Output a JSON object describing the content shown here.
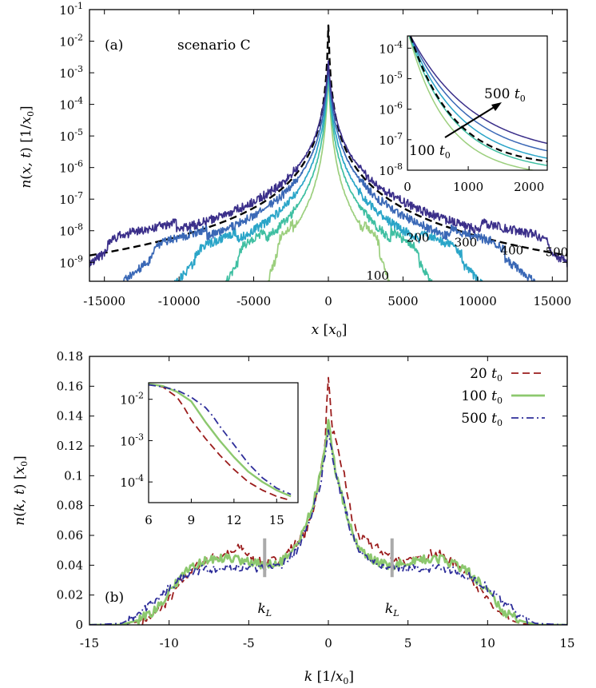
{
  "chart_data": [
    {
      "type": "line",
      "panel_label": "(a)",
      "annotation": "scenario C",
      "xlabel": "x [x0]",
      "ylabel": "n(x,t) [1/x0]",
      "xlim": [
        -16000,
        16000
      ],
      "ylim_log10": [
        -9.6,
        -1
      ],
      "y_scale": "log",
      "x_ticks": [
        -15000,
        -10000,
        -5000,
        0,
        5000,
        10000,
        15000
      ],
      "x_tick_labels": [
        "-15000",
        "-10000",
        "-5000",
        "0",
        "5000",
        "10000",
        "15000"
      ],
      "y_tick_exponents": [
        -9,
        -8,
        -7,
        -6,
        -5,
        -4,
        -3,
        -2,
        -1
      ],
      "curve_labels": [
        {
          "text": "100",
          "x": 3300,
          "log10_y": -9.55
        },
        {
          "text": "200",
          "x": 6000,
          "log10_y": -8.35
        },
        {
          "text": "300",
          "x": 9200,
          "log10_y": -8.5
        },
        {
          "text": "400",
          "x": 12300,
          "log10_y": -8.75
        },
        {
          "text": "500",
          "x": 15300,
          "log10_y": -8.8
        }
      ],
      "series": [
        {
          "time": "100",
          "color": "#9ccf7e",
          "log10_peak": -3.0,
          "core_width": 700,
          "front": 4300
        },
        {
          "time": "200",
          "color": "#3fbfa2",
          "log10_peak": -2.9,
          "core_width": 820,
          "front": 7600
        },
        {
          "time": "300",
          "color": "#2aa5c8",
          "log10_peak": -2.8,
          "core_width": 900,
          "front": 11200
        },
        {
          "time": "400",
          "color": "#3a68b6",
          "log10_peak": -2.7,
          "core_width": 950,
          "front": 14800
        },
        {
          "time": "500",
          "color": "#3b2f8a",
          "log10_peak": -2.6,
          "core_width": 1000,
          "front": 18500
        }
      ],
      "reference_curve": {
        "style": "dashed",
        "color": "#000000",
        "log10_peak": -1.5
      },
      "inset": {
        "xlim": [
          0,
          2300
        ],
        "ylim_log10": [
          -8,
          -3.6
        ],
        "x_ticks": [
          0,
          1000,
          2000
        ],
        "y_tick_exponents": [
          -8,
          -7,
          -6,
          -5,
          -4
        ],
        "arrow_from_label": "100 t0",
        "arrow_to_label": "500 t0"
      }
    },
    {
      "type": "line",
      "panel_label": "(b)",
      "xlabel": "k [1/x0]",
      "ylabel": "n(k,t) [x0]",
      "xlim": [
        -15,
        15
      ],
      "ylim": [
        0,
        0.18
      ],
      "x_ticks": [
        -15,
        -10,
        -5,
        0,
        5,
        10,
        15
      ],
      "x_tick_labels": [
        "-15",
        "-10",
        "-5",
        "0",
        "5",
        "10",
        "15"
      ],
      "y_ticks": [
        0,
        0.02,
        0.04,
        0.06,
        0.08,
        0.1,
        0.12,
        0.14,
        0.16,
        0.18
      ],
      "y_tick_labels": [
        "0",
        "0.02",
        "0.04",
        "0.06",
        "0.08",
        "0.1",
        "0.12",
        "0.14",
        "0.16",
        "0.18"
      ],
      "kL_marker": {
        "label": "kL",
        "positions": [
          -4,
          4
        ]
      },
      "series": [
        {
          "name": "20 t0",
          "style": "dashed",
          "color": "#9b1c1c",
          "x": [
            -15,
            -13,
            -12,
            -11,
            -10,
            -9,
            -8,
            -7,
            -6,
            -5.5,
            -5,
            -4,
            -3,
            -2,
            -1.5,
            -1,
            -0.5,
            -0.2,
            0,
            0.2,
            0.5,
            1,
            1.5,
            2,
            2.5,
            3,
            4,
            5,
            6,
            6.5,
            7,
            8,
            9,
            10,
            11,
            12,
            13,
            15
          ],
          "y": [
            0,
            0,
            0.002,
            0.006,
            0.017,
            0.032,
            0.042,
            0.046,
            0.048,
            0.053,
            0.046,
            0.042,
            0.044,
            0.055,
            0.06,
            0.075,
            0.1,
            0.125,
            0.168,
            0.135,
            0.12,
            0.1,
            0.07,
            0.058,
            0.055,
            0.052,
            0.045,
            0.042,
            0.046,
            0.048,
            0.047,
            0.041,
            0.031,
            0.016,
            0.005,
            0.001,
            0,
            0
          ]
        },
        {
          "name": "100 t0",
          "style": "solid",
          "color": "#8cc86e",
          "x": [
            -15,
            -13,
            -12,
            -11,
            -10,
            -9,
            -8,
            -7,
            -6,
            -5,
            -4,
            -3,
            -2,
            -1.5,
            -1,
            -0.5,
            -0.2,
            0,
            0.2,
            0.5,
            1,
            1.5,
            2,
            3,
            4,
            5,
            6,
            7,
            8,
            9,
            10,
            11,
            12,
            13,
            15
          ],
          "y": [
            0,
            0,
            0.003,
            0.009,
            0.022,
            0.035,
            0.042,
            0.044,
            0.045,
            0.042,
            0.04,
            0.042,
            0.052,
            0.065,
            0.08,
            0.1,
            0.12,
            0.135,
            0.12,
            0.1,
            0.08,
            0.062,
            0.05,
            0.042,
            0.04,
            0.042,
            0.044,
            0.044,
            0.04,
            0.034,
            0.022,
            0.009,
            0.003,
            0,
            0
          ]
        },
        {
          "name": "500 t0",
          "style": "dashdot",
          "color": "#2e2e9a",
          "x": [
            -15,
            -13,
            -12,
            -11,
            -10,
            -9,
            -8,
            -7,
            -6,
            -5,
            -4,
            -3,
            -2,
            -1.5,
            -1,
            -0.5,
            -0.2,
            0,
            0.2,
            0.5,
            1,
            1.5,
            2,
            3,
            4,
            5,
            6,
            7,
            8,
            9,
            10,
            11,
            12,
            13,
            15
          ],
          "y": [
            0,
            0.001,
            0.006,
            0.015,
            0.025,
            0.033,
            0.037,
            0.038,
            0.039,
            0.038,
            0.038,
            0.04,
            0.05,
            0.06,
            0.075,
            0.095,
            0.115,
            0.13,
            0.118,
            0.1,
            0.08,
            0.06,
            0.05,
            0.041,
            0.038,
            0.038,
            0.038,
            0.038,
            0.036,
            0.032,
            0.025,
            0.015,
            0.006,
            0.001,
            0
          ]
        }
      ],
      "inset": {
        "xlim": [
          6,
          16.5
        ],
        "ylim_log10": [
          -4.5,
          -1.6
        ],
        "x_ticks": [
          6,
          9,
          12,
          15
        ],
        "y_tick_exponents": [
          -4,
          -3,
          -2
        ],
        "series_log10": [
          {
            "name": "20 t0",
            "x": [
              6,
              7,
              8,
              8.5,
              9,
              10,
              11,
              12,
              13,
              14,
              15,
              16
            ],
            "y": [
              -1.63,
              -1.7,
              -1.95,
              -2.2,
              -2.5,
              -2.95,
              -3.35,
              -3.7,
              -4.0,
              -4.2,
              -4.35,
              -4.45
            ]
          },
          {
            "name": "100 t0",
            "x": [
              6,
              7,
              8,
              9,
              9.5,
              10,
              11,
              12,
              13,
              14,
              15,
              16
            ],
            "y": [
              -1.63,
              -1.68,
              -1.82,
              -2.05,
              -2.3,
              -2.55,
              -3.0,
              -3.4,
              -3.75,
              -4.0,
              -4.2,
              -4.35
            ]
          },
          {
            "name": "500 t0",
            "x": [
              6,
              7,
              8,
              9,
              10,
              10.5,
              11,
              12,
              13,
              14,
              15,
              16
            ],
            "y": [
              -1.65,
              -1.7,
              -1.78,
              -1.95,
              -2.2,
              -2.4,
              -2.65,
              -3.1,
              -3.55,
              -3.9,
              -4.15,
              -4.3
            ]
          }
        ]
      }
    }
  ]
}
